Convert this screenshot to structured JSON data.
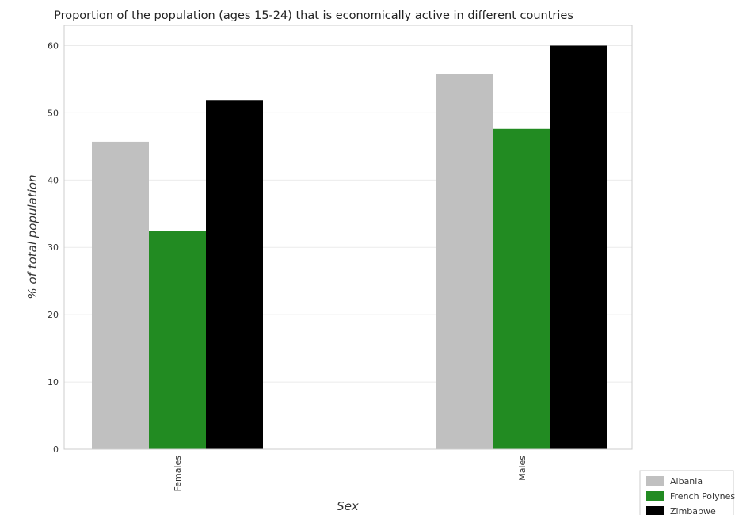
{
  "chart_data": {
    "type": "bar",
    "title": "Proportion of the population (ages 15-24) that is economically active in different countries",
    "xlabel": "Sex",
    "ylabel": "% of total population",
    "categories": [
      "Females",
      "Males"
    ],
    "series": [
      {
        "name": "Albania",
        "values": [
          45.7,
          55.8
        ],
        "color": "#c0c0c0"
      },
      {
        "name": "French Polynesia",
        "values": [
          32.4,
          47.6
        ],
        "color": "#228b22"
      },
      {
        "name": "Zimbabwe",
        "values": [
          51.9,
          60.0
        ],
        "color": "#000000"
      }
    ],
    "ylim": [
      0,
      63
    ],
    "yticks": [
      0,
      10,
      20,
      30,
      40,
      50,
      60
    ],
    "grid": true,
    "legend_position": "bottom-right"
  }
}
